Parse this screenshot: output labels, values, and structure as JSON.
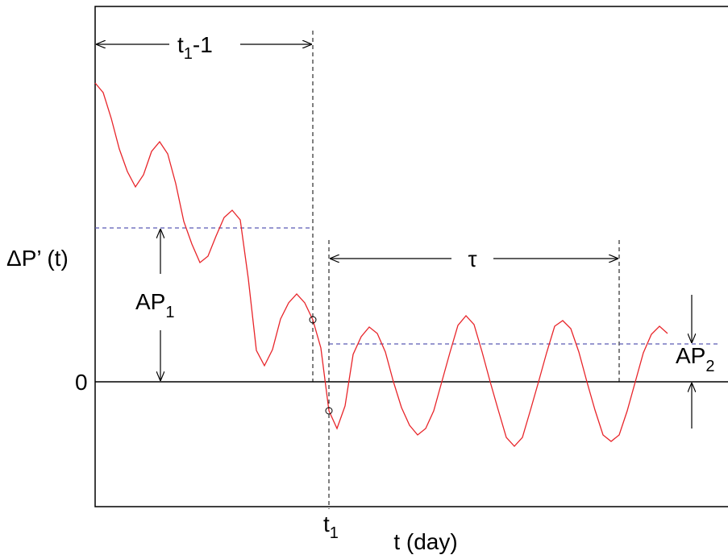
{
  "labels": {
    "y_axis": "ΔP’ (t)",
    "x_axis": "t (day)",
    "zero": "0",
    "span_t1_main": "t",
    "span_t1_sub": "1",
    "span_t1_rest": "-1",
    "tau": "τ",
    "ap1_main": "AP",
    "ap1_sub": "1",
    "ap2_main": "AP",
    "ap2_sub": "2",
    "t1_main": "t",
    "t1_sub": "1"
  },
  "colors": {
    "signal": "#e8252a",
    "reference": "#5a5ab4",
    "ink": "#000000"
  }
}
